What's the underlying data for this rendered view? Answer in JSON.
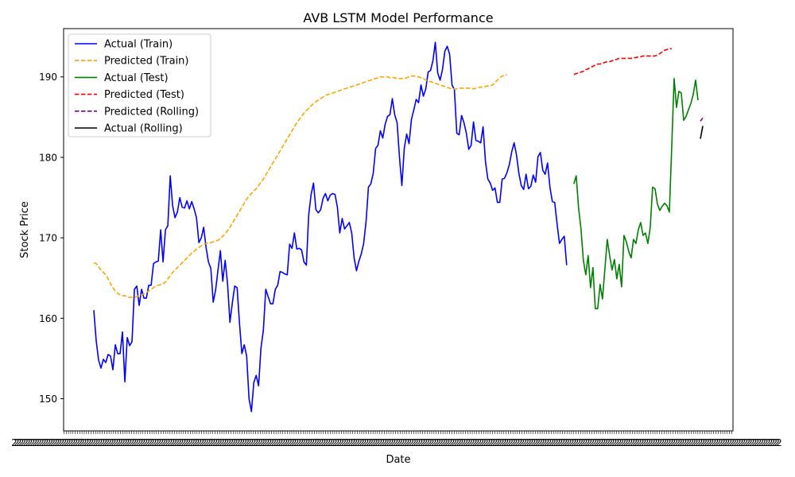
{
  "chart_data": {
    "type": "line",
    "title": "AVB LSTM Model Performance",
    "xlabel": "Date",
    "ylabel": "Stock Price",
    "ylim": [
      146,
      196
    ],
    "yticks": [
      150,
      160,
      170,
      180,
      190
    ],
    "grid": false,
    "legend_position": "top-left",
    "x_index_range": [
      0,
      255
    ],
    "series": [
      {
        "name": "Actual (Train)",
        "color": "#0000ff",
        "style": "solid",
        "x_start": 0,
        "values": [
          161.0,
          157.2,
          154.8,
          153.8,
          154.9,
          154.5,
          155.5,
          155.3,
          153.6,
          156.7,
          155.6,
          155.6,
          158.3,
          152.1,
          157.6,
          156.6,
          157.1,
          163.6,
          164.0,
          161.6,
          163.6,
          162.5,
          162.5,
          164.1,
          164.1,
          166.8,
          167.0,
          167.1,
          171.0,
          167.0,
          171.0,
          171.5,
          177.7,
          174.0,
          172.5,
          173.2,
          175.0,
          173.8,
          173.7,
          174.6,
          173.6,
          174.5,
          173.6,
          172.5,
          169.4,
          170.0,
          171.3,
          168.8,
          167.0,
          166.2,
          162.0,
          163.5,
          166.0,
          168.4,
          164.6,
          167.2,
          164.3,
          159.5,
          161.9,
          164.0,
          163.8,
          159.4,
          155.6,
          156.7,
          155.3,
          150.0,
          148.4,
          152.0,
          152.9,
          151.6,
          156.3,
          158.5,
          163.6,
          162.7,
          161.8,
          161.8,
          163.6,
          164.1,
          165.8,
          165.7,
          165.5,
          165.4,
          169.2,
          168.7,
          170.6,
          168.6,
          168.7,
          168.5,
          167.0,
          166.6,
          172.9,
          175.4,
          176.8,
          173.5,
          173.1,
          173.5,
          174.9,
          175.5,
          174.6,
          175.3,
          175.5,
          175.4,
          173.8,
          170.6,
          172.4,
          171.1,
          171.5,
          171.9,
          170.6,
          167.5,
          165.9,
          167.1,
          168.0,
          169.3,
          172.0,
          176.3,
          176.7,
          178.0,
          181.1,
          181.5,
          183.3,
          182.4,
          184.1,
          185.1,
          185.3,
          187.3,
          185.3,
          184.3,
          180.0,
          176.5,
          181.1,
          182.9,
          181.7,
          184.7,
          185.9,
          187.2,
          186.8,
          189.0,
          187.6,
          188.5,
          190.6,
          190.8,
          192.0,
          194.3,
          190.5,
          189.6,
          190.9,
          193.2,
          193.8,
          192.8,
          189.0,
          188.4,
          183.0,
          182.8,
          185.2,
          184.3,
          183.0,
          181.0,
          181.5,
          184.4,
          182.1,
          182.0,
          181.8,
          183.8,
          179.5,
          177.3,
          176.8,
          175.9,
          176.2,
          174.4,
          174.4,
          177.3,
          177.4,
          178.1,
          179.1,
          180.7,
          181.8,
          180.3,
          178.0,
          176.5,
          176.0,
          177.9,
          176.1,
          176.4,
          177.8,
          176.9,
          180.1,
          180.6,
          178.4,
          177.9,
          179.3,
          176.3,
          174.5,
          174.4,
          171.7,
          169.3,
          169.8,
          170.2,
          166.6
        ]
      },
      {
        "name": "Predicted (Train)",
        "color": "#ffa500",
        "style": "dashed",
        "x_start": 0,
        "values": [
          166.9,
          166.8,
          166.4,
          166.0,
          165.7,
          165.4,
          164.9,
          164.3,
          163.8,
          163.4,
          163.1,
          162.9,
          162.8,
          162.8,
          162.7,
          162.6,
          162.6,
          162.6,
          162.7,
          162.8,
          162.9,
          163.0,
          163.2,
          163.4,
          163.6,
          163.8,
          164.0,
          164.1,
          164.2,
          164.3,
          164.5,
          164.9,
          165.3,
          165.7,
          166.0,
          166.3,
          166.6,
          166.9,
          167.2,
          167.5,
          167.8,
          168.1,
          168.3,
          168.6,
          168.8,
          169.0,
          169.2,
          169.3,
          169.4,
          169.4,
          169.5,
          169.6,
          169.7,
          169.9,
          170.2,
          170.5,
          170.9,
          171.3,
          171.8,
          172.3,
          172.8,
          173.3,
          173.8,
          174.3,
          174.8,
          175.2,
          175.5,
          175.8,
          176.1,
          176.5,
          176.9,
          177.3,
          177.8,
          178.3,
          178.8,
          179.3,
          179.8,
          180.3,
          180.8,
          181.3,
          181.8,
          182.3,
          182.8,
          183.3,
          183.8,
          184.3,
          184.7,
          185.1,
          185.5,
          185.8,
          186.1,
          186.4,
          186.7,
          186.9,
          187.1,
          187.3,
          187.5,
          187.7,
          187.8,
          187.9,
          188.0,
          188.1,
          188.2,
          188.3,
          188.4,
          188.5,
          188.6,
          188.7,
          188.8,
          188.9,
          189.0,
          189.1,
          189.2,
          189.3,
          189.4,
          189.5,
          189.6,
          189.7,
          189.8,
          189.9,
          190.0,
          190.0,
          190.0,
          190.0,
          189.9,
          189.9,
          189.9,
          189.8,
          189.8,
          189.8,
          189.8,
          189.9,
          190.0,
          190.1,
          190.1,
          190.1,
          190.0,
          189.9,
          189.8,
          189.6,
          189.5,
          189.4,
          189.3,
          189.2,
          189.1,
          189.0,
          188.9,
          188.8,
          188.7,
          188.6,
          188.5,
          188.5,
          188.5,
          188.6,
          188.6,
          188.6,
          188.6,
          188.6,
          188.6,
          188.5,
          188.6,
          188.7,
          188.7,
          188.8,
          188.8,
          188.9,
          188.9,
          189.0,
          189.3,
          189.6,
          189.9,
          190.1,
          190.2,
          190.3
        ]
      },
      {
        "name": "Actual (Test)",
        "color": "#008000",
        "style": "solid",
        "x_start": 201,
        "values": [
          176.7,
          177.7,
          173.7,
          171.1,
          167.2,
          165.4,
          167.8,
          163.8,
          166.3,
          161.2,
          161.2,
          164.2,
          162.4,
          166.1,
          169.8,
          167.8,
          166.0,
          167.3,
          164.9,
          166.7,
          163.9,
          170.3,
          169.5,
          168.3,
          167.5,
          169.8,
          169.3,
          171.0,
          171.9,
          170.3,
          170.6,
          169.3,
          171.3,
          176.3,
          176.1,
          174.2,
          173.4,
          173.9,
          174.3,
          174.0,
          173.2,
          181.3,
          189.8,
          186.2,
          188.2,
          188.0,
          184.6,
          185.1,
          185.9,
          186.7,
          187.8,
          189.6,
          187.1
        ]
      },
      {
        "name": "Predicted (Test)",
        "color": "#ff0000",
        "style": "dashed",
        "x_start": 201,
        "values": [
          190.3,
          190.4,
          190.5,
          190.6,
          190.7,
          190.9,
          191.0,
          191.2,
          191.3,
          191.5,
          191.6,
          191.6,
          191.7,
          191.8,
          191.9,
          191.9,
          192.0,
          192.1,
          192.2,
          192.3,
          192.3,
          192.3,
          192.3,
          192.3,
          192.3,
          192.4,
          192.4,
          192.5,
          192.5,
          192.6,
          192.6,
          192.6,
          192.6,
          192.6,
          192.6,
          192.7,
          192.9,
          193.1,
          193.3,
          193.4,
          193.5,
          193.5
        ]
      },
      {
        "name": "Predicted (Rolling)",
        "color": "#800080",
        "style": "dashed",
        "x_start": 254,
        "values": [
          184.5,
          184.9
        ]
      },
      {
        "name": "Actual (Rolling)",
        "color": "#000000",
        "style": "solid",
        "x_start": 254,
        "values": [
          182.3,
          183.9
        ]
      }
    ],
    "x_tick_labels_overlapping": "2"
  }
}
